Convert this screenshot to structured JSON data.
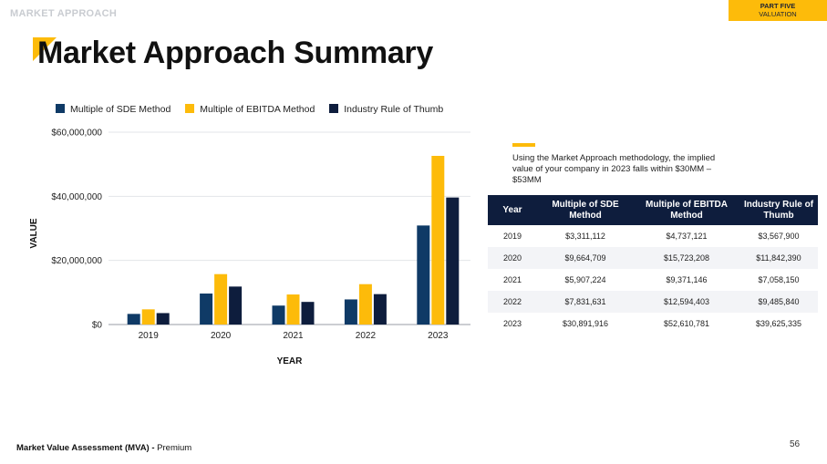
{
  "header": {
    "section_label": "MARKET APPROACH",
    "part_label": "PART FIVE",
    "part_sublabel": "VALUATION",
    "title": "Market Approach Summary"
  },
  "colors": {
    "sde": "#0f3a66",
    "ebitda": "#fdbb0a",
    "rule": "#0e1d3d",
    "accent": "#fdbb0a"
  },
  "chart_data": {
    "type": "bar",
    "title": "",
    "xlabel": "YEAR",
    "ylabel": "VALUE",
    "categories": [
      "2019",
      "2020",
      "2021",
      "2022",
      "2023"
    ],
    "ylim": [
      0,
      60000000
    ],
    "yticks": [
      0,
      20000000,
      40000000,
      60000000
    ],
    "ytick_labels": [
      "$0",
      "$20,000,000",
      "$40,000,000",
      "$60,000,000"
    ],
    "grid": true,
    "legend_position": "top-left",
    "series": [
      {
        "name": "Multiple of SDE Method",
        "values": [
          3311112,
          9664709,
          5907224,
          7831631,
          30891916
        ]
      },
      {
        "name": "Multiple of EBITDA Method",
        "values": [
          4737121,
          15723208,
          9371146,
          12594403,
          52610781
        ]
      },
      {
        "name": "Industry Rule of Thumb",
        "values": [
          3567900,
          11842390,
          7058150,
          9485840,
          39625335
        ]
      }
    ]
  },
  "note": "Using the Market Approach methodology, the implied value of your company in 2023 falls within $30MM – $53MM",
  "table": {
    "headers": [
      "Year",
      "Multiple of SDE Method",
      "Multiple of EBITDA Method",
      "Industry Rule of Thumb"
    ],
    "rows": [
      [
        "2019",
        "$3,311,112",
        "$4,737,121",
        "$3,567,900"
      ],
      [
        "2020",
        "$9,664,709",
        "$15,723,208",
        "$11,842,390"
      ],
      [
        "2021",
        "$5,907,224",
        "$9,371,146",
        "$7,058,150"
      ],
      [
        "2022",
        "$7,831,631",
        "$12,594,403",
        "$9,485,840"
      ],
      [
        "2023",
        "$30,891,916",
        "$52,610,781",
        "$39,625,335"
      ]
    ]
  },
  "footer": {
    "doc_title": "Market Value Assessment (MVA) -",
    "doc_tier": "Premium",
    "page_number": "56"
  }
}
